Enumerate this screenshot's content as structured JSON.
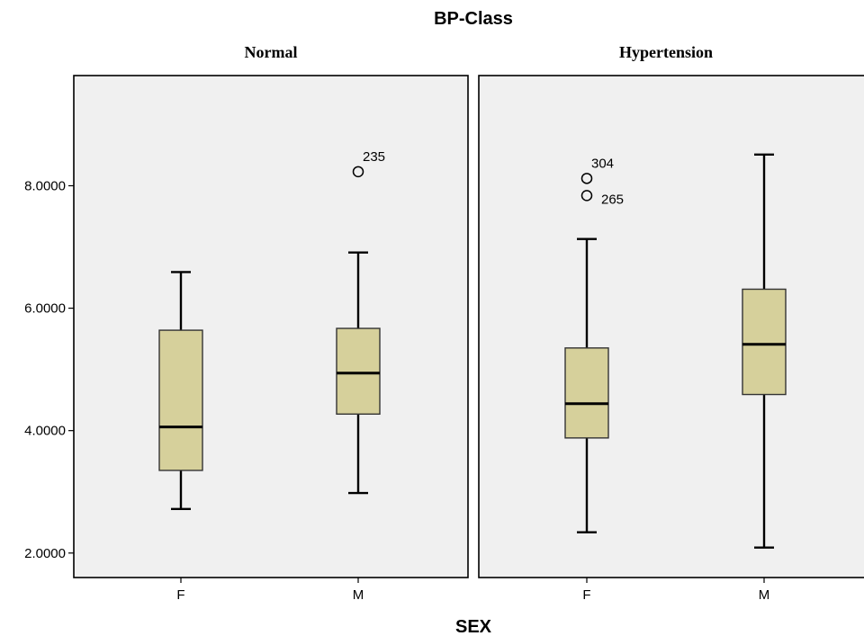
{
  "chart_data": {
    "type": "boxplot",
    "title": "BP-Class",
    "xlabel": "SEX",
    "ylabel": "",
    "ylim": [
      1.6,
      9.8
    ],
    "yticks": [
      {
        "value": 2,
        "label": "2.0000"
      },
      {
        "value": 4,
        "label": "4.0000"
      },
      {
        "value": 6,
        "label": "6.0000"
      },
      {
        "value": 8,
        "label": "8.0000"
      }
    ],
    "grid": false,
    "panels": [
      {
        "label": "Normal",
        "groups": [
          {
            "category": "F",
            "whisker_low": 2.72,
            "q1": 3.35,
            "median": 4.06,
            "q3": 5.64,
            "whisker_high": 6.59,
            "outliers": []
          },
          {
            "category": "M",
            "whisker_low": 2.98,
            "q1": 4.27,
            "median": 4.94,
            "q3": 5.67,
            "whisker_high": 6.91,
            "outliers": [
              {
                "value": 8.23,
                "label": "235"
              }
            ]
          }
        ]
      },
      {
        "label": "Hypertension",
        "groups": [
          {
            "category": "F",
            "whisker_low": 2.34,
            "q1": 3.88,
            "median": 4.44,
            "q3": 5.35,
            "whisker_high": 7.13,
            "outliers": [
              {
                "value": 8.12,
                "label": "304"
              },
              {
                "value": 7.84,
                "label": "265"
              }
            ]
          },
          {
            "category": "M",
            "whisker_low": 2.09,
            "q1": 4.59,
            "median": 5.41,
            "q3": 6.31,
            "whisker_high": 8.51,
            "outliers": []
          }
        ]
      }
    ],
    "colors": {
      "box_fill": "#d6d09b",
      "box_stroke": "#333333",
      "panel_bg": "#f0f0f0",
      "line": "#000000"
    }
  }
}
